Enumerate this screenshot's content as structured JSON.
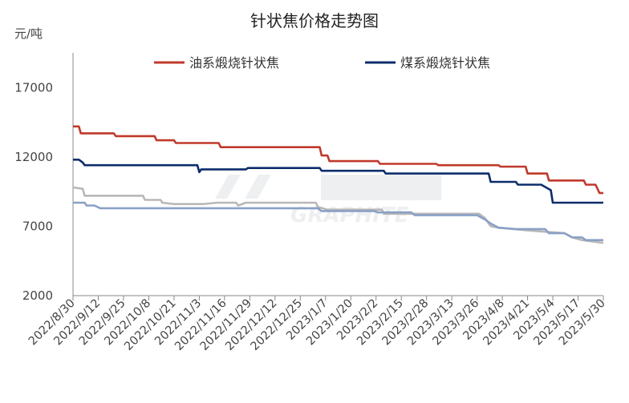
{
  "chart_data": {
    "type": "line",
    "title": "针状焦价格走势图",
    "y_unit_label": "元/吨",
    "ylim": [
      2000,
      19500
    ],
    "yticks": [
      2000,
      7000,
      12000,
      17000
    ],
    "ytick_labels": [
      "2000",
      "7000",
      "12000",
      "17000"
    ],
    "grid": false,
    "legend_position": "top",
    "x_date_range": [
      "2022-08-30",
      "2023-05-30"
    ],
    "xtick_dates": [
      "2022-08-30",
      "2022-09-12",
      "2022-09-25",
      "2022-10-08",
      "2022-10-21",
      "2022-11-03",
      "2022-11-16",
      "2022-11-29",
      "2022-12-12",
      "2022-12-25",
      "2023-01-07",
      "2023-01-20",
      "2023-02-02",
      "2023-02-15",
      "2023-02-28",
      "2023-03-13",
      "2023-03-26",
      "2023-04-08",
      "2023-04-21",
      "2023-05-04",
      "2023-05-17",
      "2023-05-30"
    ],
    "xtick_labels": [
      "2022/8/30",
      "2022/9/12",
      "2022/9/25",
      "2022/10/8",
      "2022/10/21",
      "2022/11/3",
      "2022/11/16",
      "2022/11/29",
      "2022/12/12",
      "2022/12/25",
      "2023/1/7",
      "2023/1/20",
      "2023/2/2",
      "2023/2/15",
      "2023/2/28",
      "2023/3/13",
      "2023/3/26",
      "2023/4/8",
      "2023/4/21",
      "2023/5/4",
      "2023/5/17",
      "2023/5/30"
    ],
    "watermark": "GRAPHITE",
    "series": [
      {
        "name": "油系煅烧针状焦",
        "color": "#c0392b",
        "points": [
          [
            "2022-08-30",
            14200
          ],
          [
            "2022-09-02",
            14200
          ],
          [
            "2022-09-03",
            13700
          ],
          [
            "2022-09-20",
            13700
          ],
          [
            "2022-09-21",
            13500
          ],
          [
            "2022-10-11",
            13500
          ],
          [
            "2022-10-12",
            13200
          ],
          [
            "2022-10-21",
            13200
          ],
          [
            "2022-10-22",
            13000
          ],
          [
            "2022-11-13",
            13000
          ],
          [
            "2022-11-14",
            12700
          ],
          [
            "2023-01-04",
            12700
          ],
          [
            "2023-01-05",
            12100
          ],
          [
            "2023-01-08",
            12100
          ],
          [
            "2023-01-09",
            11700
          ],
          [
            "2023-02-03",
            11700
          ],
          [
            "2023-02-04",
            11500
          ],
          [
            "2023-03-05",
            11500
          ],
          [
            "2023-03-06",
            11400
          ],
          [
            "2023-04-06",
            11400
          ],
          [
            "2023-04-07",
            11300
          ],
          [
            "2023-04-20",
            11300
          ],
          [
            "2023-04-21",
            10800
          ],
          [
            "2023-05-01",
            10800
          ],
          [
            "2023-05-02",
            10300
          ],
          [
            "2023-05-20",
            10300
          ],
          [
            "2023-05-21",
            10000
          ],
          [
            "2023-05-26",
            10000
          ],
          [
            "2023-05-28",
            9400
          ],
          [
            "2023-05-30",
            9400
          ]
        ]
      },
      {
        "name": "煤系煅烧针状焦",
        "color": "#0d2d6c",
        "points": [
          [
            "2022-08-30",
            11800
          ],
          [
            "2022-09-02",
            11800
          ],
          [
            "2022-09-04",
            11600
          ],
          [
            "2022-09-05",
            11400
          ],
          [
            "2022-11-02",
            11400
          ],
          [
            "2022-11-03",
            10900
          ],
          [
            "2022-11-04",
            11100
          ],
          [
            "2022-11-27",
            11100
          ],
          [
            "2022-11-28",
            11200
          ],
          [
            "2023-01-04",
            11200
          ],
          [
            "2023-01-05",
            11000
          ],
          [
            "2023-02-06",
            11000
          ],
          [
            "2023-02-07",
            10800
          ],
          [
            "2023-04-01",
            10800
          ],
          [
            "2023-04-02",
            10200
          ],
          [
            "2023-04-15",
            10200
          ],
          [
            "2023-04-16",
            10000
          ],
          [
            "2023-04-28",
            10000
          ],
          [
            "2023-05-03",
            9600
          ],
          [
            "2023-05-04",
            8700
          ],
          [
            "2023-05-30",
            8700
          ]
        ]
      },
      {
        "color": "#b8b8b8",
        "points": [
          [
            "2022-08-30",
            9800
          ],
          [
            "2022-09-04",
            9700
          ],
          [
            "2022-09-05",
            9200
          ],
          [
            "2022-10-05",
            9200
          ],
          [
            "2022-10-06",
            8900
          ],
          [
            "2022-10-14",
            8900
          ],
          [
            "2022-10-15",
            8700
          ],
          [
            "2022-10-21",
            8600
          ],
          [
            "2022-11-05",
            8600
          ],
          [
            "2022-11-12",
            8700
          ],
          [
            "2022-11-22",
            8700
          ],
          [
            "2022-11-23",
            8500
          ],
          [
            "2022-11-27",
            8700
          ],
          [
            "2023-01-02",
            8700
          ],
          [
            "2023-01-03",
            8400
          ],
          [
            "2023-01-08",
            8200
          ],
          [
            "2023-02-05",
            8200
          ],
          [
            "2023-02-06",
            7900
          ],
          [
            "2023-03-27",
            7900
          ],
          [
            "2023-03-30",
            7600
          ],
          [
            "2023-04-02",
            7000
          ],
          [
            "2023-04-06",
            6900
          ],
          [
            "2023-04-14",
            6800
          ],
          [
            "2023-04-21",
            6700
          ],
          [
            "2023-05-01",
            6600
          ],
          [
            "2023-05-10",
            6500
          ],
          [
            "2023-05-14",
            6200
          ],
          [
            "2023-05-19",
            6000
          ],
          [
            "2023-05-30",
            5800
          ]
        ]
      },
      {
        "color": "#8aa0c6",
        "points": [
          [
            "2022-08-30",
            8700
          ],
          [
            "2022-09-05",
            8700
          ],
          [
            "2022-09-06",
            8500
          ],
          [
            "2022-09-10",
            8500
          ],
          [
            "2022-09-13",
            8300
          ],
          [
            "2023-01-03",
            8300
          ],
          [
            "2023-01-05",
            8100
          ],
          [
            "2023-02-01",
            8100
          ],
          [
            "2023-02-03",
            8000
          ],
          [
            "2023-02-20",
            8000
          ],
          [
            "2023-02-22",
            7800
          ],
          [
            "2023-03-26",
            7800
          ],
          [
            "2023-03-30",
            7500
          ],
          [
            "2023-04-02",
            7200
          ],
          [
            "2023-04-06",
            6900
          ],
          [
            "2023-04-15",
            6800
          ],
          [
            "2023-04-30",
            6800
          ],
          [
            "2023-05-02",
            6500
          ],
          [
            "2023-05-10",
            6500
          ],
          [
            "2023-05-14",
            6200
          ],
          [
            "2023-05-19",
            6200
          ],
          [
            "2023-05-21",
            6000
          ],
          [
            "2023-05-30",
            6000
          ]
        ]
      }
    ]
  }
}
